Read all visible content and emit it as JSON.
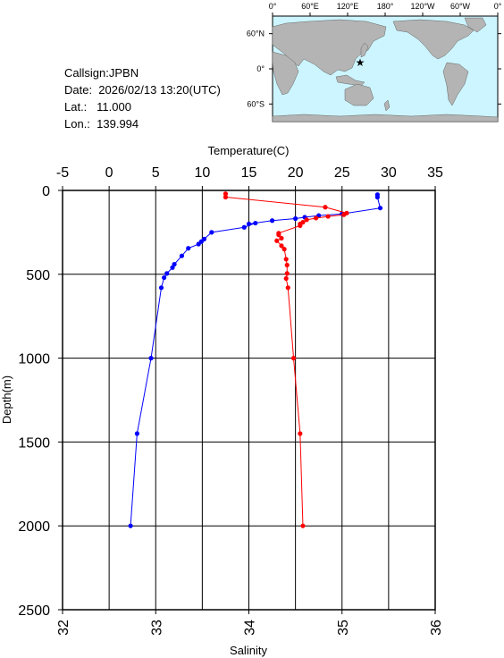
{
  "info": {
    "callsign": "Callsign:JPBN",
    "date": "Date:  2026/02/13 13:20(UTC)",
    "lat": "Lat.:   11.000",
    "lon": "Lon.:  139.994"
  },
  "map": {
    "top_labels": [
      "0°",
      "60°E",
      "120°E",
      "180°",
      "120°W",
      "60°W",
      "0°"
    ],
    "right_labels": [
      "60°N",
      "0°",
      "60°S"
    ],
    "ocean_color": "#ccf5ff",
    "land_color": "#b4b4b4",
    "marker_color": "#ff0000",
    "marker": {
      "lon": 139.994,
      "lat": 11.0
    }
  },
  "chart_data": {
    "type": "line",
    "xlabel_top": "Temperature(C)",
    "xlabel_bottom": "Salinity",
    "ylabel": "Depth(m)",
    "temperature_axis": {
      "range": [
        -5,
        35
      ],
      "ticks": [
        "-5",
        "0",
        "5",
        "10",
        "15",
        "20",
        "25",
        "30",
        "35"
      ]
    },
    "salinity_axis": {
      "range": [
        32,
        36
      ],
      "ticks": [
        "32",
        "33",
        "34",
        "35",
        "36"
      ]
    },
    "depth_axis": {
      "range": [
        0,
        2500
      ],
      "ticks": [
        "0",
        "500",
        "1000",
        "1500",
        "2000",
        "2500"
      ]
    },
    "series": [
      {
        "name": "Temperature",
        "axis": "temperature",
        "color": "#0000ff",
        "points": [
          [
            28.8,
            25
          ],
          [
            28.8,
            40
          ],
          [
            29.1,
            105
          ],
          [
            25.0,
            140
          ],
          [
            22.5,
            150
          ],
          [
            21.0,
            160
          ],
          [
            20.0,
            168
          ],
          [
            17.5,
            180
          ],
          [
            15.0,
            200
          ],
          [
            15.7,
            195
          ],
          [
            14.5,
            220
          ],
          [
            11.0,
            250
          ],
          [
            10.2,
            290
          ],
          [
            9.9,
            305
          ],
          [
            9.6,
            320
          ],
          [
            8.5,
            345
          ],
          [
            7.8,
            390
          ],
          [
            7.0,
            440
          ],
          [
            6.8,
            460
          ],
          [
            6.2,
            495
          ],
          [
            5.9,
            520
          ],
          [
            5.6,
            580
          ],
          [
            4.5,
            1000
          ],
          [
            3.0,
            1450
          ],
          [
            2.3,
            2000
          ]
        ]
      },
      {
        "name": "Salinity",
        "axis": "salinity",
        "color": "#ff0000",
        "points": [
          [
            33.75,
            20
          ],
          [
            33.75,
            40
          ],
          [
            34.82,
            100
          ],
          [
            35.05,
            135
          ],
          [
            35.02,
            145
          ],
          [
            34.85,
            155
          ],
          [
            34.72,
            165
          ],
          [
            34.62,
            175
          ],
          [
            34.58,
            190
          ],
          [
            34.55,
            200
          ],
          [
            34.55,
            210
          ],
          [
            34.32,
            255
          ],
          [
            34.32,
            265
          ],
          [
            34.35,
            285
          ],
          [
            34.3,
            300
          ],
          [
            34.35,
            330
          ],
          [
            34.38,
            350
          ],
          [
            34.4,
            410
          ],
          [
            34.41,
            445
          ],
          [
            34.41,
            495
          ],
          [
            34.4,
            525
          ],
          [
            34.42,
            580
          ],
          [
            34.48,
            1000
          ],
          [
            34.55,
            1450
          ],
          [
            34.58,
            2000
          ]
        ]
      }
    ],
    "grid": true
  }
}
